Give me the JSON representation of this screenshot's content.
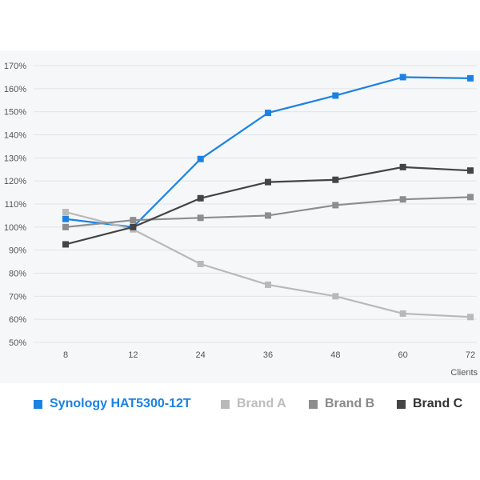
{
  "chart_data": {
    "type": "line",
    "categories": [
      "8",
      "12",
      "24",
      "36",
      "48",
      "60",
      "72"
    ],
    "xlabel": "Clients",
    "ylabel": "",
    "y_ticks": [
      "50%",
      "60%",
      "70%",
      "80%",
      "90%",
      "100%",
      "110%",
      "120%",
      "130%",
      "140%",
      "150%",
      "160%",
      "170%"
    ],
    "ylim": [
      50,
      170
    ],
    "y_unit": "%",
    "grid": "horizontal",
    "legend_position": "bottom",
    "series": [
      {
        "name": "Synology HAT5300-12T",
        "color": "#1a82e2",
        "values": [
          103.5,
          100,
          129.5,
          149.5,
          157,
          165,
          164.5
        ]
      },
      {
        "name": "Brand A",
        "color": "#b9b9b9",
        "values": [
          106.5,
          99,
          84,
          75,
          70,
          62.5,
          61
        ]
      },
      {
        "name": "Brand B",
        "color": "#8d8d8d",
        "values": [
          100,
          103,
          104,
          105,
          109.5,
          112,
          113
        ]
      },
      {
        "name": "Brand C",
        "color": "#444444",
        "values": [
          92.5,
          100,
          112.5,
          119.5,
          120.5,
          126,
          124.5
        ]
      }
    ]
  }
}
